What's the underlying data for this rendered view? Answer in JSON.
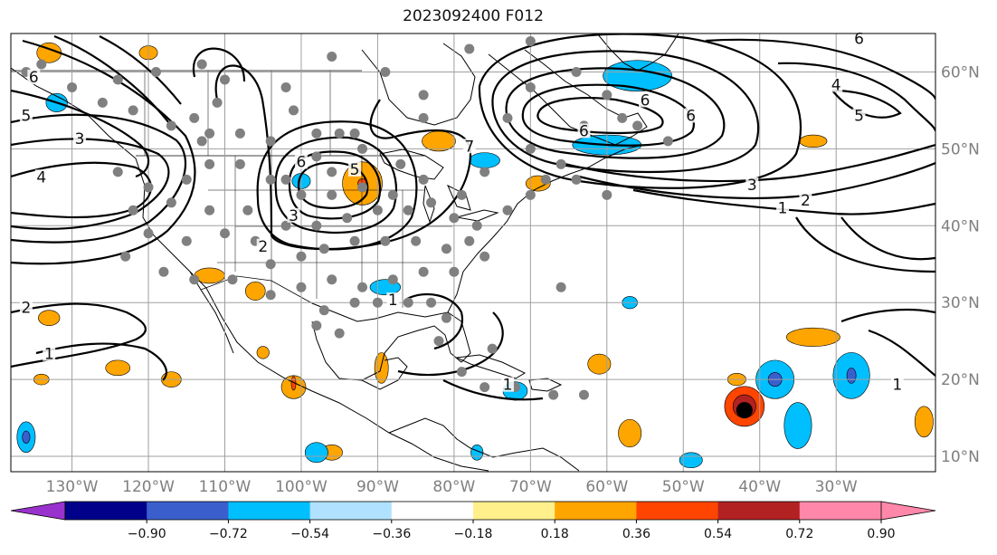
{
  "title": "2023092400 F012",
  "map": {
    "lon_range": [
      -138,
      -17
    ],
    "lat_range": [
      8,
      65
    ],
    "lon_ticks": [
      {
        "lon": -130,
        "label": "130°W"
      },
      {
        "lon": -120,
        "label": "120°W"
      },
      {
        "lon": -110,
        "label": "110°W"
      },
      {
        "lon": -100,
        "label": "100°W"
      },
      {
        "lon": -90,
        "label": "90°W"
      },
      {
        "lon": -80,
        "label": "80°W"
      },
      {
        "lon": -70,
        "label": "70°W"
      },
      {
        "lon": -60,
        "label": "60°W"
      },
      {
        "lon": -50,
        "label": "50°W"
      },
      {
        "lon": -40,
        "label": "40°W"
      },
      {
        "lon": -30,
        "label": "30°W"
      }
    ],
    "lat_ticks": [
      {
        "lat": 60,
        "label": "60°N"
      },
      {
        "lat": 50,
        "label": "50°N"
      },
      {
        "lat": 40,
        "label": "40°N"
      },
      {
        "lat": 30,
        "label": "30°N"
      },
      {
        "lat": 20,
        "label": "20°N"
      },
      {
        "lat": 10,
        "label": "10°N"
      }
    ],
    "grid": true,
    "colors": {
      "land_line": "#000000",
      "grid": "#a0a0a0",
      "station": "#808080",
      "marker": "#000000"
    },
    "contour_labels": [
      {
        "text": "6",
        "lon": -135,
        "lat": 59
      },
      {
        "text": "5",
        "lon": -136,
        "lat": 54
      },
      {
        "text": "3",
        "lon": -129,
        "lat": 51
      },
      {
        "text": "4",
        "lon": -134,
        "lat": 46
      },
      {
        "text": "2",
        "lon": -105,
        "lat": 37
      },
      {
        "text": "3",
        "lon": -101,
        "lat": 41
      },
      {
        "text": "6",
        "lon": -100,
        "lat": 48
      },
      {
        "text": "5",
        "lon": -93,
        "lat": 47
      },
      {
        "text": "7",
        "lon": -78,
        "lat": 50
      },
      {
        "text": "6",
        "lon": -55,
        "lat": 56
      },
      {
        "text": "6",
        "lon": -49,
        "lat": 54
      },
      {
        "text": "6",
        "lon": -63,
        "lat": 52
      },
      {
        "text": "3",
        "lon": -41,
        "lat": 45
      },
      {
        "text": "1",
        "lon": -37,
        "lat": 42
      },
      {
        "text": "2",
        "lon": -34,
        "lat": 43
      },
      {
        "text": "4",
        "lon": -30,
        "lat": 58
      },
      {
        "text": "5",
        "lon": -27,
        "lat": 54
      },
      {
        "text": "6",
        "lon": -27,
        "lat": 64
      },
      {
        "text": "2",
        "lon": -136,
        "lat": 29
      },
      {
        "text": "1",
        "lon": -133,
        "lat": 23
      },
      {
        "text": "1",
        "lon": -88,
        "lat": 30
      },
      {
        "text": "1",
        "lon": -22,
        "lat": 19
      },
      {
        "text": "1",
        "lon": -73,
        "lat": 19
      }
    ],
    "stations": [
      [
        -136,
        60
      ],
      [
        -134,
        61
      ],
      [
        -130,
        58
      ],
      [
        -124,
        59
      ],
      [
        -119,
        60
      ],
      [
        -113,
        61
      ],
      [
        -110,
        59
      ],
      [
        -126,
        56
      ],
      [
        -122,
        55
      ],
      [
        -117,
        53
      ],
      [
        -113,
        51
      ],
      [
        -108,
        52
      ],
      [
        -104,
        51
      ],
      [
        -98,
        52
      ],
      [
        -93,
        52
      ],
      [
        -89,
        60
      ],
      [
        -84,
        57
      ],
      [
        -84,
        54
      ],
      [
        -87,
        48
      ],
      [
        -95,
        52
      ],
      [
        -92,
        50
      ],
      [
        -114,
        54
      ],
      [
        -112,
        52
      ],
      [
        -101,
        55
      ],
      [
        -98,
        49
      ],
      [
        -102,
        46
      ],
      [
        -100,
        44
      ],
      [
        -96,
        44
      ],
      [
        -104,
        46
      ],
      [
        -108,
        48
      ],
      [
        -112,
        48
      ],
      [
        -115,
        46
      ],
      [
        -120,
        45
      ],
      [
        -124,
        47
      ],
      [
        -122,
        42
      ],
      [
        -117,
        43
      ],
      [
        -112,
        42
      ],
      [
        -107,
        42
      ],
      [
        -102,
        40
      ],
      [
        -98,
        40
      ],
      [
        -94,
        41
      ],
      [
        -90,
        42
      ],
      [
        -86,
        42
      ],
      [
        -83,
        43
      ],
      [
        -80,
        41
      ],
      [
        -77,
        40
      ],
      [
        -73,
        42
      ],
      [
        -70,
        44
      ],
      [
        -68,
        46
      ],
      [
        -64,
        46
      ],
      [
        -60,
        44
      ],
      [
        -66,
        48
      ],
      [
        -70,
        50
      ],
      [
        -76,
        47
      ],
      [
        -79,
        44
      ],
      [
        -84,
        46
      ],
      [
        -88,
        44
      ],
      [
        -92,
        45
      ],
      [
        -96,
        47
      ],
      [
        -106,
        38
      ],
      [
        -110,
        39
      ],
      [
        -115,
        38
      ],
      [
        -120,
        39
      ],
      [
        -123,
        36
      ],
      [
        -118,
        34
      ],
      [
        -114,
        33
      ],
      [
        -109,
        33
      ],
      [
        -104,
        35
      ],
      [
        -100,
        36
      ],
      [
        -97,
        37
      ],
      [
        -93,
        38
      ],
      [
        -89,
        38
      ],
      [
        -85,
        38
      ],
      [
        -81,
        37
      ],
      [
        -78,
        38
      ],
      [
        -76,
        36
      ],
      [
        -80,
        34
      ],
      [
        -84,
        34
      ],
      [
        -88,
        33
      ],
      [
        -92,
        32
      ],
      [
        -96,
        33
      ],
      [
        -100,
        32
      ],
      [
        -104,
        31
      ],
      [
        -97,
        29
      ],
      [
        -93,
        30
      ],
      [
        -90,
        30
      ],
      [
        -86,
        30
      ],
      [
        -83,
        30
      ],
      [
        -81,
        28
      ],
      [
        -82,
        25
      ],
      [
        -98,
        27
      ],
      [
        -95,
        26
      ],
      [
        -70,
        58
      ],
      [
        -64,
        60
      ],
      [
        -60,
        57
      ],
      [
        -56,
        53
      ],
      [
        -63,
        53
      ],
      [
        -73,
        54
      ],
      [
        -78,
        63
      ],
      [
        -70,
        64
      ],
      [
        -96,
        62
      ],
      [
        -111,
        56
      ],
      [
        -102,
        58
      ],
      [
        -66,
        32
      ],
      [
        -75,
        24
      ],
      [
        -79,
        21
      ],
      [
        -76,
        19
      ],
      [
        -72,
        19
      ],
      [
        -67,
        18
      ],
      [
        -63,
        18
      ],
      [
        -58,
        54
      ],
      [
        -52,
        51
      ]
    ],
    "marker": {
      "lon": -42,
      "lat": 16
    },
    "shaded_regions": [
      {
        "value": 0.45,
        "center": [
          -92,
          45.5
        ],
        "size": [
          2.6,
          2.8
        ]
      },
      {
        "value": 0.45,
        "center": [
          -82,
          51
        ],
        "size": [
          2.2,
          1.3
        ]
      },
      {
        "value": 0.45,
        "center": [
          -69,
          45.5
        ],
        "size": [
          1.6,
          1.0
        ]
      },
      {
        "value": 0.45,
        "center": [
          -112,
          33.5
        ],
        "size": [
          2.0,
          1.0
        ]
      },
      {
        "value": 0.45,
        "center": [
          -106,
          31.5
        ],
        "size": [
          1.3,
          1.2
        ]
      },
      {
        "value": 0.45,
        "center": [
          -133,
          28.0
        ],
        "size": [
          1.4,
          1.0
        ]
      },
      {
        "value": 0.45,
        "center": [
          -124,
          21.5
        ],
        "size": [
          1.6,
          1.0
        ]
      },
      {
        "value": 0.45,
        "center": [
          -117,
          20.0
        ],
        "size": [
          1.3,
          1.0
        ]
      },
      {
        "value": 0.45,
        "center": [
          -101,
          19.0
        ],
        "size": [
          1.6,
          1.5
        ]
      },
      {
        "value": 0.45,
        "center": [
          -105,
          23.5
        ],
        "size": [
          0.8,
          0.8
        ]
      },
      {
        "value": 0.45,
        "center": [
          -89.5,
          21.5
        ],
        "size": [
          0.9,
          2.0
        ]
      },
      {
        "value": 0.45,
        "center": [
          -61,
          22.0
        ],
        "size": [
          1.5,
          1.3
        ]
      },
      {
        "value": 0.45,
        "center": [
          -57,
          13.0
        ],
        "size": [
          1.5,
          1.8
        ]
      },
      {
        "value": 0.45,
        "center": [
          -33,
          25.5
        ],
        "size": [
          3.5,
          1.2
        ]
      },
      {
        "value": 0.45,
        "center": [
          -33,
          51
        ],
        "size": [
          1.8,
          0.8
        ]
      },
      {
        "value": 0.45,
        "center": [
          -43,
          20.0
        ],
        "size": [
          1.2,
          0.8
        ]
      },
      {
        "value": 0.45,
        "center": [
          -18.5,
          14.5
        ],
        "size": [
          1.2,
          2.0
        ]
      },
      {
        "value": 0.45,
        "center": [
          -133,
          62.5
        ],
        "size": [
          1.6,
          1.3
        ]
      },
      {
        "value": 0.45,
        "center": [
          -120,
          62.5
        ],
        "size": [
          1.2,
          0.9
        ]
      },
      {
        "value": 0.45,
        "center": [
          -134,
          20.0
        ],
        "size": [
          1.0,
          0.7
        ]
      },
      {
        "value": 0.45,
        "center": [
          -96,
          10.5
        ],
        "size": [
          1.4,
          1.0
        ]
      },
      {
        "value": 0.7,
        "center": [
          -42,
          16.5
        ],
        "size": [
          2.6,
          2.6
        ]
      },
      {
        "value": 0.85,
        "center": [
          -42,
          16.5
        ],
        "size": [
          1.5,
          1.5
        ]
      },
      {
        "value": 0.7,
        "center": [
          -92,
          45.5
        ],
        "size": [
          0.6,
          0.6
        ]
      },
      {
        "value": 0.7,
        "center": [
          -101,
          19.5
        ],
        "size": [
          0.3,
          0.9
        ]
      },
      {
        "value": -0.45,
        "center": [
          -56,
          59.5
        ],
        "size": [
          4.5,
          2.0
        ]
      },
      {
        "value": -0.45,
        "center": [
          -60,
          50.5
        ],
        "size": [
          4.5,
          1.3
        ]
      },
      {
        "value": -0.45,
        "center": [
          -76,
          48.5
        ],
        "size": [
          2.0,
          1.0
        ]
      },
      {
        "value": -0.45,
        "center": [
          -100,
          45.8
        ],
        "size": [
          1.2,
          1.0
        ]
      },
      {
        "value": -0.45,
        "center": [
          -132,
          56.0
        ],
        "size": [
          1.4,
          1.2
        ]
      },
      {
        "value": -0.45,
        "center": [
          -136,
          12.5
        ],
        "size": [
          1.2,
          2.0
        ]
      },
      {
        "value": -0.45,
        "center": [
          -98,
          10.5
        ],
        "size": [
          1.5,
          1.3
        ]
      },
      {
        "value": -0.45,
        "center": [
          -77,
          10.5
        ],
        "size": [
          0.8,
          1.0
        ]
      },
      {
        "value": -0.45,
        "center": [
          -72,
          18.5
        ],
        "size": [
          1.6,
          1.2
        ]
      },
      {
        "value": -0.45,
        "center": [
          -89,
          32.0
        ],
        "size": [
          2.0,
          1.0
        ]
      },
      {
        "value": -0.45,
        "center": [
          -38,
          20.0
        ],
        "size": [
          2.5,
          2.5
        ]
      },
      {
        "value": -0.45,
        "center": [
          -28,
          20.5
        ],
        "size": [
          2.4,
          3.0
        ]
      },
      {
        "value": -0.45,
        "center": [
          -35,
          14.0
        ],
        "size": [
          1.8,
          3.0
        ]
      },
      {
        "value": -0.45,
        "center": [
          -49,
          9.5
        ],
        "size": [
          1.5,
          1.0
        ]
      },
      {
        "value": -0.45,
        "center": [
          -57,
          30.0
        ],
        "size": [
          1.0,
          0.8
        ]
      },
      {
        "value": -0.6,
        "center": [
          -38,
          20.0
        ],
        "size": [
          0.9,
          0.9
        ]
      },
      {
        "value": -0.6,
        "center": [
          -28,
          20.5
        ],
        "size": [
          0.6,
          1.0
        ]
      },
      {
        "value": -0.6,
        "center": [
          -136,
          12.5
        ],
        "size": [
          0.5,
          0.8
        ]
      }
    ]
  },
  "colorbar": {
    "colors": [
      "#9932cc",
      "#00008b",
      "#3a5fcd",
      "#00bfff",
      "#b0e2ff",
      "#ffffff",
      "#fff08c",
      "#ffa500",
      "#ff4500",
      "#b22222",
      "#ff88aa",
      "#ff88aa"
    ],
    "under_color": "#9932cc",
    "over_color": "#ff88aa",
    "ticks": [
      {
        "value": -0.9,
        "label": "−0.90"
      },
      {
        "value": -0.72,
        "label": "−0.72"
      },
      {
        "value": -0.54,
        "label": "−0.54"
      },
      {
        "value": -0.36,
        "label": "−0.36"
      },
      {
        "value": -0.18,
        "label": "−0.18"
      },
      {
        "value": 0.18,
        "label": "0.18"
      },
      {
        "value": 0.36,
        "label": "0.36"
      },
      {
        "value": 0.54,
        "label": "0.54"
      },
      {
        "value": 0.72,
        "label": "0.72"
      },
      {
        "value": 0.9,
        "label": "0.90"
      }
    ]
  }
}
